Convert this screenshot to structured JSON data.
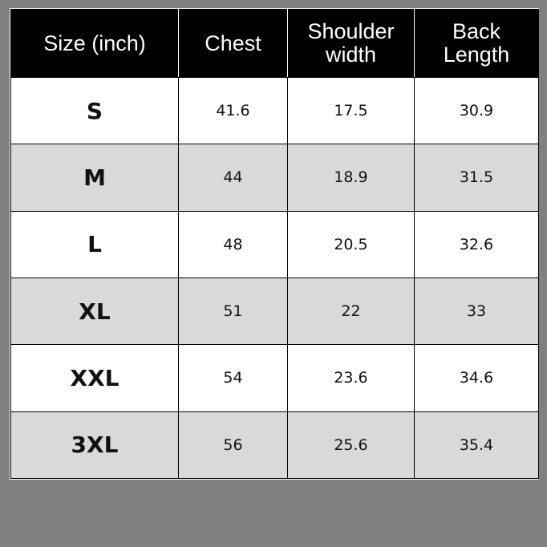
{
  "headers": [
    "Size (inch)",
    "Chest",
    "Shoulder width",
    "Back Length"
  ],
  "rows": [
    {
      "size": "S",
      "chest": "41.6",
      "shoulder": "17.5",
      "back": "30.9"
    },
    {
      "size": "M",
      "chest": "44",
      "shoulder": "18.9",
      "back": "31.5"
    },
    {
      "size": "L",
      "chest": "48",
      "shoulder": "20.5",
      "back": "32.6"
    },
    {
      "size": "XL",
      "chest": "51",
      "shoulder": "22",
      "back": "33"
    },
    {
      "size": "XXL",
      "chest": "54",
      "shoulder": "23.6",
      "back": "34.6"
    },
    {
      "size": "3XL",
      "chest": "56",
      "shoulder": "25.6",
      "back": "35.4"
    }
  ],
  "colors": {
    "background": "#808080",
    "header": "#000000",
    "alt_row": "#d9d9d9"
  }
}
